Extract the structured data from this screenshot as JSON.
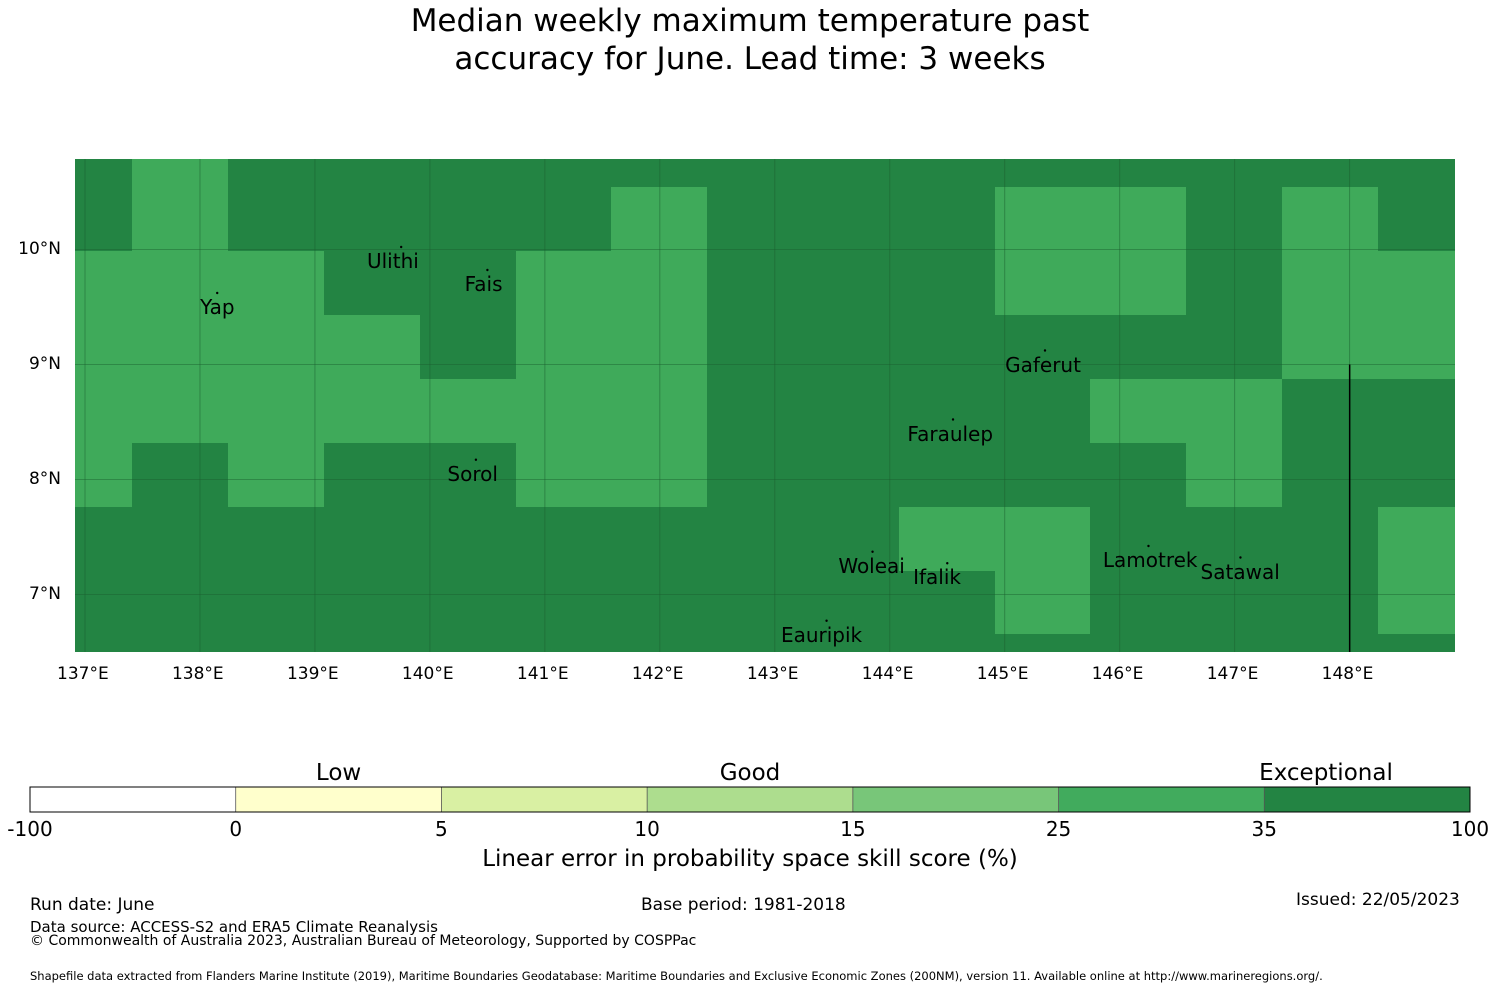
{
  "title_line1": "Median weekly maximum temperature past",
  "title_line2": "accuracy for June. Lead time: 3 weeks",
  "map": {
    "lon_labels": [
      "137°E",
      "138°E",
      "139°E",
      "140°E",
      "141°E",
      "142°E",
      "143°E",
      "144°E",
      "145°E",
      "146°E",
      "147°E",
      "148°E"
    ],
    "lat_labels": [
      "10°N",
      "9°N",
      "8°N",
      "7°N"
    ],
    "places": [
      {
        "name": "Ulithi",
        "lon": 139.75,
        "lat": 9.9
      },
      {
        "name": "Yap",
        "lon": 138.15,
        "lat": 9.5
      },
      {
        "name": "Fais",
        "lon": 140.5,
        "lat": 9.7
      },
      {
        "name": "Gaferut",
        "lon": 145.35,
        "lat": 9.0
      },
      {
        "name": "Faraulep",
        "lon": 144.55,
        "lat": 8.4
      },
      {
        "name": "Sorol",
        "lon": 140.4,
        "lat": 8.05
      },
      {
        "name": "Woleai",
        "lon": 143.85,
        "lat": 7.25
      },
      {
        "name": "Ifalik",
        "lon": 144.5,
        "lat": 7.15
      },
      {
        "name": "Lamotrek",
        "lon": 146.25,
        "lat": 7.3
      },
      {
        "name": "Satawal",
        "lon": 147.05,
        "lat": 7.2
      },
      {
        "name": "Eauripik",
        "lon": 143.45,
        "lat": 6.65
      }
    ],
    "colors": {
      "skill_25_35": "#3faa5a",
      "skill_35_100": "#238443",
      "gridline": "#1b5e2e",
      "boundary_line": "#000000"
    }
  },
  "colorbar": {
    "categories": [
      {
        "label": "Low",
        "pos": 1.5
      },
      {
        "label": "Good",
        "pos": 3.5
      },
      {
        "label": "Exceptional",
        "pos": 6.3
      }
    ],
    "ticks": [
      "-100",
      "0",
      "5",
      "10",
      "15",
      "25",
      "35",
      "100"
    ],
    "colors": [
      "#ffffff",
      "#ffffcc",
      "#d9f0a3",
      "#addd8e",
      "#78c679",
      "#41ab5d",
      "#238443"
    ],
    "label": "Linear error in probability space skill score (%)"
  },
  "footer": {
    "run_date": "Run date: June",
    "data_source": "Data source: ACCESS-S2 and ERA5 Climate Reanalysis",
    "copyright": "© Commonwealth of Australia 2023, Australian Bureau of Meteorology, Supported by COSPPac",
    "base_period": "Base period: 1981-2018",
    "issued": "Issued: 22/05/2023",
    "shapefile": "Shapefile data extracted from Flanders Marine Institute (2019), Maritime Boundaries Geodatabase: Maritime Boundaries and Exclusive Economic Zones (200NM), version 11. Available online at http://www.marineregions.org/."
  }
}
